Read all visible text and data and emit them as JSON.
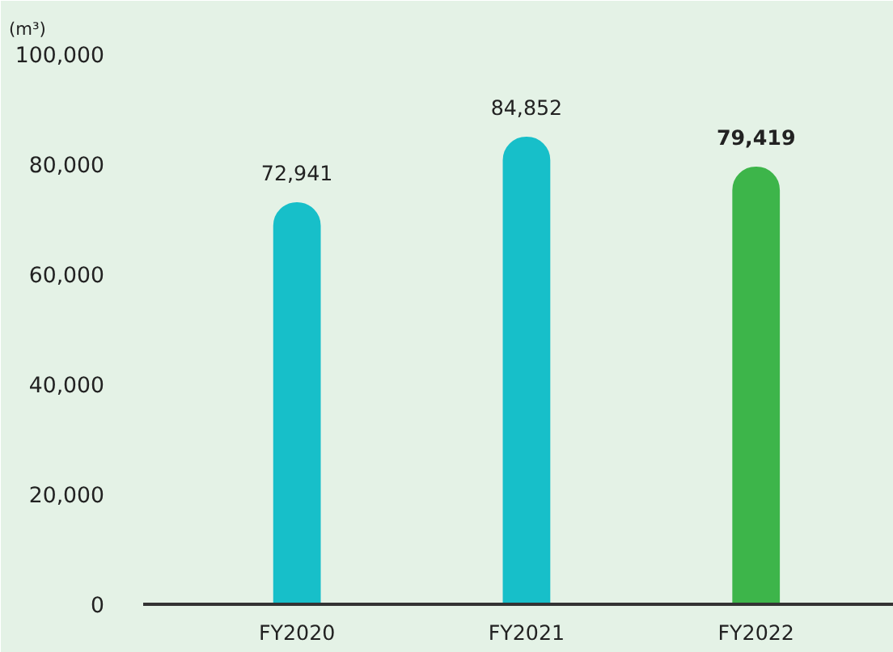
{
  "chart_data": {
    "type": "bar",
    "ylabel": "(m³)",
    "categories": [
      "FY2020",
      "FY2021",
      "FY2022"
    ],
    "values": [
      72941,
      84852,
      79419
    ],
    "colors": [
      "#17bfc9",
      "#17bfc9",
      "#3db54a"
    ],
    "value_labels": [
      "72,941",
      "84,852",
      "79,419"
    ],
    "ylim": [
      0,
      100000
    ],
    "yticks": [
      {
        "value": 0,
        "label": "0"
      },
      {
        "value": 20000,
        "label": "20,000"
      },
      {
        "value": 40000,
        "label": "40,000"
      },
      {
        "value": 60000,
        "label": "60,000"
      },
      {
        "value": 80000,
        "label": "80,000"
      },
      {
        "value": 100000,
        "label": "100,000"
      }
    ],
    "grid": false
  }
}
